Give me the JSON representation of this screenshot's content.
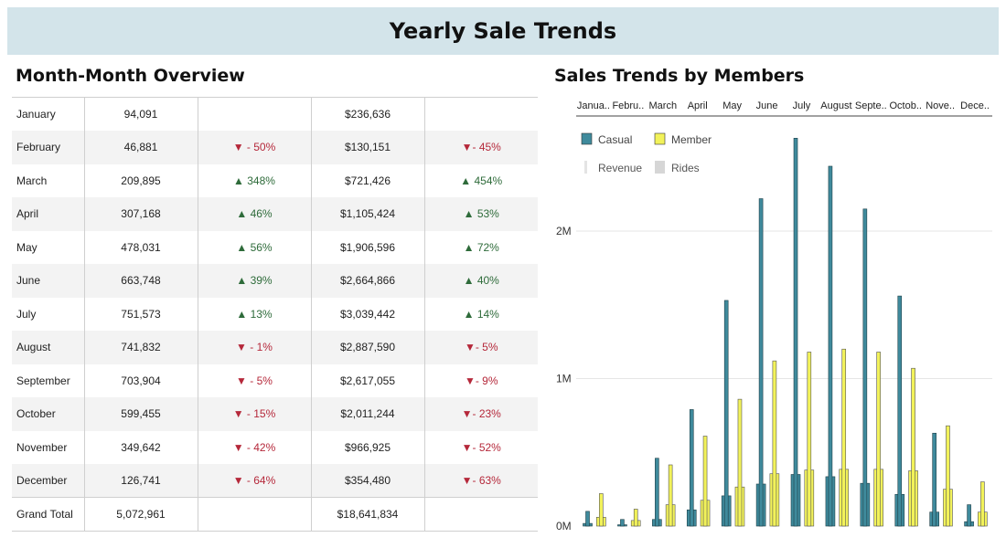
{
  "header": {
    "title": "Yearly Sale Trends"
  },
  "overview": {
    "title": "Month-Month Overview",
    "rows": [
      {
        "month": "January",
        "rides": "94,091",
        "rides_change": "",
        "rides_dir": "",
        "revenue": "$236,636",
        "revenue_change": "",
        "revenue_dir": ""
      },
      {
        "month": "February",
        "rides": "46,881",
        "rides_change": "▼ - 50%",
        "rides_dir": "down",
        "revenue": "$130,151",
        "revenue_change": "▼- 45%",
        "revenue_dir": "down"
      },
      {
        "month": "March",
        "rides": "209,895",
        "rides_change": "▲ 348%",
        "rides_dir": "up",
        "revenue": "$721,426",
        "revenue_change": "▲ 454%",
        "revenue_dir": "up"
      },
      {
        "month": "April",
        "rides": "307,168",
        "rides_change": "▲ 46%",
        "rides_dir": "up",
        "revenue": "$1,105,424",
        "revenue_change": "▲ 53%",
        "revenue_dir": "up"
      },
      {
        "month": "May",
        "rides": "478,031",
        "rides_change": "▲ 56%",
        "rides_dir": "up",
        "revenue": "$1,906,596",
        "revenue_change": "▲ 72%",
        "revenue_dir": "up"
      },
      {
        "month": "June",
        "rides": "663,748",
        "rides_change": "▲ 39%",
        "rides_dir": "up",
        "revenue": "$2,664,866",
        "revenue_change": "▲ 40%",
        "revenue_dir": "up"
      },
      {
        "month": "July",
        "rides": "751,573",
        "rides_change": "▲ 13%",
        "rides_dir": "up",
        "revenue": "$3,039,442",
        "revenue_change": "▲ 14%",
        "revenue_dir": "up"
      },
      {
        "month": "August",
        "rides": "741,832",
        "rides_change": "▼ - 1%",
        "rides_dir": "down",
        "revenue": "$2,887,590",
        "revenue_change": "▼- 5%",
        "revenue_dir": "down"
      },
      {
        "month": "September",
        "rides": "703,904",
        "rides_change": "▼ - 5%",
        "rides_dir": "down",
        "revenue": "$2,617,055",
        "revenue_change": "▼- 9%",
        "revenue_dir": "down"
      },
      {
        "month": "October",
        "rides": "599,455",
        "rides_change": "▼ - 15%",
        "rides_dir": "down",
        "revenue": "$2,011,244",
        "revenue_change": "▼- 23%",
        "revenue_dir": "down"
      },
      {
        "month": "November",
        "rides": "349,642",
        "rides_change": "▼ - 42%",
        "rides_dir": "down",
        "revenue": "$966,925",
        "revenue_change": "▼- 52%",
        "revenue_dir": "down"
      },
      {
        "month": "December",
        "rides": "126,741",
        "rides_change": "▼ - 64%",
        "rides_dir": "down",
        "revenue": "$354,480",
        "revenue_change": "▼- 63%",
        "revenue_dir": "down"
      }
    ],
    "total": {
      "label": "Grand Total",
      "rides": "5,072,961",
      "revenue": "$18,641,834"
    }
  },
  "chart": {
    "title": "Sales Trends by Members"
  },
  "colors": {
    "casual": "#3f8a9c",
    "member": "#f2f25a",
    "revenue": "#e4e4e4",
    "rides": "#d6d6d6"
  },
  "chart_data": {
    "type": "bar",
    "title": "Sales Trends by Members",
    "categories": [
      "Janua..",
      "Febru..",
      "March",
      "April",
      "May",
      "June",
      "July",
      "August",
      "Septe..",
      "Octob..",
      "Nove..",
      "Dece.."
    ],
    "legend": [
      {
        "name": "Casual",
        "kind": "color"
      },
      {
        "name": "Member",
        "kind": "color"
      },
      {
        "name": "Revenue",
        "kind": "size"
      },
      {
        "name": "Rides",
        "kind": "size"
      }
    ],
    "legend_position": "top-left",
    "yticks": [
      "0M",
      "1M",
      "2M"
    ],
    "ylim": [
      0,
      2700000
    ],
    "grid": true,
    "series": [
      {
        "name": "Casual",
        "measure": "Revenue",
        "values": [
          100000,
          45000,
          460000,
          790000,
          1530000,
          2220000,
          2630000,
          2440000,
          2150000,
          1560000,
          630000,
          145000
        ]
      },
      {
        "name": "Casual",
        "measure": "Rides",
        "values": [
          18000,
          9000,
          45000,
          110000,
          205000,
          285000,
          350000,
          335000,
          290000,
          215000,
          95000,
          30000
        ]
      },
      {
        "name": "Member",
        "measure": "Revenue",
        "values": [
          220000,
          115000,
          415000,
          610000,
          860000,
          1120000,
          1180000,
          1200000,
          1180000,
          1070000,
          680000,
          300000
        ]
      },
      {
        "name": "Member",
        "measure": "Rides",
        "values": [
          60000,
          38000,
          145000,
          175000,
          265000,
          355000,
          380000,
          385000,
          385000,
          375000,
          250000,
          95000
        ]
      }
    ]
  }
}
